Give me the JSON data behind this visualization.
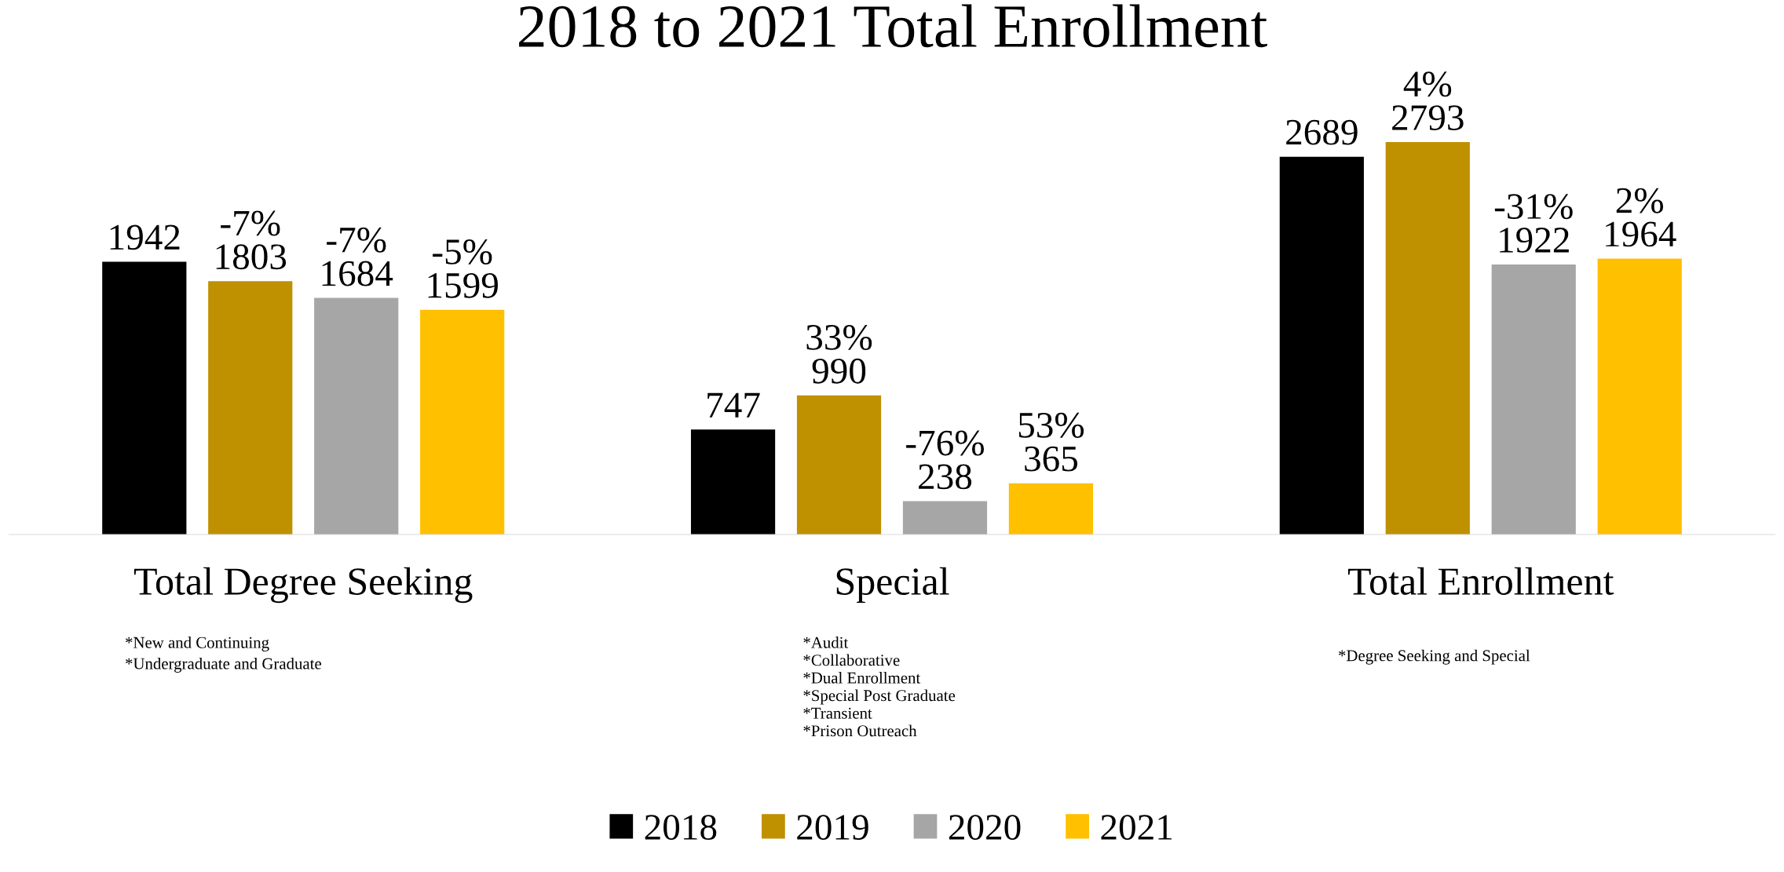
{
  "chart_data": {
    "type": "bar",
    "title": "2018 to 2021 Total Enrollment",
    "categories": [
      "Total Degree Seeking",
      "Special",
      "Total Enrollment"
    ],
    "series": [
      {
        "name": "2018",
        "color": "#000000",
        "values": [
          1942,
          747,
          2689
        ],
        "value_labels": [
          "1942",
          "747",
          "2689"
        ]
      },
      {
        "name": "2019",
        "color": "#bf9000",
        "values": [
          1803,
          990,
          2793
        ],
        "value_labels": [
          "-7%\n1803",
          "33%\n990",
          "4%\n2793"
        ]
      },
      {
        "name": "2020",
        "color": "#a6a6a6",
        "values": [
          1684,
          238,
          1922
        ],
        "value_labels": [
          "-7%\n1684",
          "-76%\n238",
          "-31%\n1922"
        ]
      },
      {
        "name": "2021",
        "color": "#ffc000",
        "values": [
          1599,
          365,
          1964
        ],
        "value_labels": [
          "-5%\n1599",
          "53%\n365",
          "2%\n1964"
        ]
      }
    ],
    "annotations": [
      "*New and Continuing\n*Undergraduate and Graduate",
      "*Audit\n*Collaborative\n*Dual Enrollment\n*Special Post Graduate\n*Transient\n*Prison Outreach",
      "*Degree Seeking and Special"
    ],
    "legend": "bottom",
    "grid": false,
    "tick_labels": "x"
  }
}
